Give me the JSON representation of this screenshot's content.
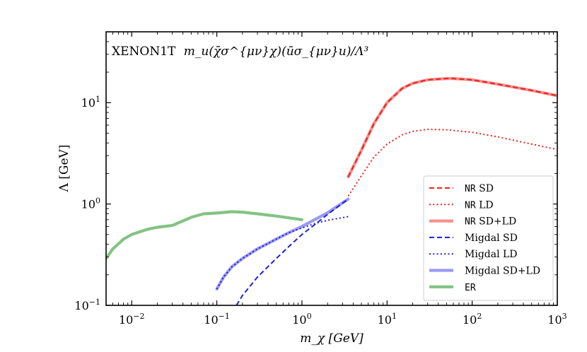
{
  "chart_data": {
    "type": "line",
    "title": "XENON1T",
    "operator_label": "m_u(χ̄σ^{μν}χ)(ūσ_{μν}u)/Λ³",
    "xlabel": "m_χ [GeV]",
    "ylabel": "Λ [GeV]",
    "xscale": "log",
    "yscale": "log",
    "xlim": [
      0.005,
      1000
    ],
    "ylim": [
      0.1,
      50
    ],
    "xticks": [
      {
        "value": 0.01,
        "base": "10",
        "exp": "−2"
      },
      {
        "value": 0.1,
        "base": "10",
        "exp": "−1"
      },
      {
        "value": 1,
        "base": "10",
        "exp": "0"
      },
      {
        "value": 10,
        "base": "10",
        "exp": "1"
      },
      {
        "value": 100,
        "base": "10",
        "exp": "2"
      },
      {
        "value": 1000,
        "base": "10",
        "exp": "3"
      }
    ],
    "yticks": [
      {
        "value": 0.1,
        "base": "10",
        "exp": "−1"
      },
      {
        "value": 1,
        "base": "10",
        "exp": "0"
      },
      {
        "value": 10,
        "base": "10",
        "exp": "1"
      }
    ],
    "legend_position": "lower-right",
    "series": [
      {
        "name": "NR SD+LD",
        "label_mono": "NR",
        "label_rest": " SD+LD",
        "color": "#f78f8f",
        "style": "solid-thick",
        "x": [
          3.5,
          5,
          7,
          10,
          15,
          20,
          30,
          50,
          60,
          100,
          200,
          500,
          1000
        ],
        "y": [
          1.85,
          3.4,
          6.2,
          10.0,
          13.8,
          15.5,
          16.8,
          17.3,
          17.3,
          16.8,
          15.2,
          13.2,
          11.7
        ]
      },
      {
        "name": "NR SD",
        "label_mono": "NR",
        "label_rest": " SD",
        "color": "#e8231e",
        "style": "dashed",
        "x": [
          3.5,
          5,
          7,
          10,
          15,
          20,
          30,
          50,
          60,
          100,
          200,
          500,
          1000
        ],
        "y": [
          1.85,
          3.4,
          6.2,
          10.0,
          13.8,
          15.5,
          16.8,
          17.3,
          17.3,
          16.8,
          15.2,
          13.2,
          11.7
        ]
      },
      {
        "name": "NR LD",
        "label_mono": "NR",
        "label_rest": " LD",
        "color": "#e8231e",
        "style": "dotted",
        "x": [
          3.5,
          5,
          7,
          10,
          15,
          20,
          30,
          50,
          100,
          200,
          500,
          1000
        ],
        "y": [
          1.2,
          1.9,
          2.9,
          3.9,
          4.8,
          5.2,
          5.45,
          5.4,
          5.1,
          4.6,
          3.9,
          3.45
        ]
      },
      {
        "name": "Migdal SD+LD",
        "label_mono": "",
        "label_rest": "Migdal SD+LD",
        "color": "#9999f5",
        "style": "solid-thick",
        "x": [
          0.1,
          0.12,
          0.15,
          0.2,
          0.3,
          0.5,
          0.7,
          1.0,
          1.5,
          2.0,
          3.5
        ],
        "y": [
          0.145,
          0.19,
          0.24,
          0.29,
          0.36,
          0.45,
          0.52,
          0.6,
          0.72,
          0.82,
          1.12
        ]
      },
      {
        "name": "Migdal SD",
        "label_mono": "",
        "label_rest": "Migdal SD",
        "color": "#1f1fd6",
        "style": "dashed",
        "x": [
          0.17,
          0.2,
          0.3,
          0.5,
          0.7,
          1.0,
          1.5,
          2.0,
          3.5
        ],
        "y": [
          0.1,
          0.125,
          0.19,
          0.29,
          0.38,
          0.5,
          0.65,
          0.79,
          1.12
        ]
      },
      {
        "name": "Migdal LD",
        "label_mono": "",
        "label_rest": "Migdal LD",
        "color": "#1f1fd6",
        "style": "dotted",
        "x": [
          0.1,
          0.12,
          0.15,
          0.2,
          0.3,
          0.5,
          0.7,
          1.0,
          1.5,
          2.0,
          3.5
        ],
        "y": [
          0.145,
          0.19,
          0.24,
          0.29,
          0.36,
          0.45,
          0.52,
          0.58,
          0.65,
          0.69,
          0.75
        ]
      },
      {
        "name": "ER",
        "label_mono": "ER",
        "label_rest": "",
        "color": "#83c383",
        "style": "solid-thick",
        "x": [
          0.005,
          0.006,
          0.008,
          0.01,
          0.015,
          0.02,
          0.03,
          0.04,
          0.05,
          0.07,
          0.1,
          0.15,
          0.2,
          0.3,
          0.5,
          1.0
        ],
        "y": [
          0.29,
          0.36,
          0.45,
          0.5,
          0.56,
          0.59,
          0.615,
          0.68,
          0.74,
          0.8,
          0.815,
          0.84,
          0.83,
          0.8,
          0.76,
          0.7
        ]
      }
    ],
    "legend_order": [
      "NR SD",
      "NR LD",
      "NR SD+LD",
      "Migdal SD",
      "Migdal LD",
      "Migdal SD+LD",
      "ER"
    ]
  }
}
